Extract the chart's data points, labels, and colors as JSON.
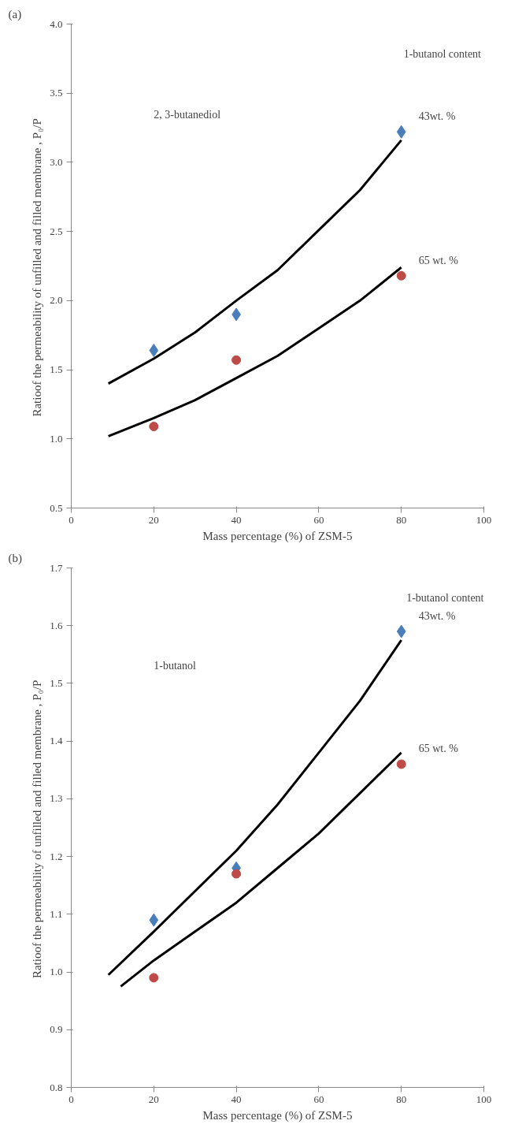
{
  "chart_data": [
    {
      "type": "scatter",
      "title": "(a)",
      "xlabel": "Mass percentage (%) of ZSM-5",
      "ylabel": "Ratioof the permeability of  unfilled and filled membrane , P₀/P",
      "legend_title": "1-butanol  content",
      "annotations": [
        "2, 3-butanediol"
      ],
      "xlim": [
        0,
        100
      ],
      "xticks": [
        0,
        20,
        40,
        60,
        80,
        100
      ],
      "ylim": [
        0.5,
        4.0
      ],
      "yticks": [
        {
          "value": 0.5,
          "label": "0.5"
        },
        {
          "value": 1.0,
          "label": "1.0"
        },
        {
          "value": 1.5,
          "label": "1.5"
        },
        {
          "value": 2.0,
          "label": "2.0"
        },
        {
          "value": 2.5,
          "label": "2.5"
        },
        {
          "value": 3.0,
          "label": "3.0"
        },
        {
          "value": 3.5,
          "label": "3.5"
        },
        {
          "value": 4.0,
          "label": "4.0"
        }
      ],
      "grid": false,
      "x": [
        20,
        40,
        80
      ],
      "series": [
        {
          "name": "43wt. %",
          "marker": "diamond",
          "color": "#4a7ebb",
          "values": [
            1.64,
            1.9,
            3.22
          ]
        },
        {
          "name": "65 wt. %",
          "marker": "circle",
          "color": "#be4b48",
          "values": [
            1.09,
            1.57,
            2.18
          ]
        },
        {
          "type": "line",
          "color": "#000000",
          "x": [
            9,
            20,
            30,
            40,
            50,
            60,
            70,
            80
          ],
          "values": [
            1.4,
            1.58,
            1.77,
            2.0,
            2.22,
            2.51,
            2.8,
            3.16
          ]
        },
        {
          "type": "line",
          "color": "#000000",
          "x": [
            9,
            20,
            30,
            40,
            50,
            60,
            70,
            80
          ],
          "values": [
            1.02,
            1.15,
            1.28,
            1.44,
            1.6,
            1.8,
            2.0,
            2.24
          ]
        }
      ]
    },
    {
      "type": "scatter",
      "title": "(b)",
      "xlabel": "Mass percentage (%) of ZSM-5",
      "ylabel": "Ratioof the permeability of  unfilled and filled membrane , P₀/P",
      "legend_title": "1-butanol content",
      "annotations": [
        "1-butanol"
      ],
      "xlim": [
        0,
        100
      ],
      "xticks": [
        0,
        20,
        40,
        60,
        80,
        100
      ],
      "ylim": [
        0.8,
        1.7
      ],
      "yticks": [
        {
          "value": 0.8,
          "label": "0.8"
        },
        {
          "value": 0.9,
          "label": "0.9"
        },
        {
          "value": 1.0,
          "label": "1.0"
        },
        {
          "value": 1.1,
          "label": "1.1"
        },
        {
          "value": 1.2,
          "label": "1.2"
        },
        {
          "value": 1.3,
          "label": "1.3"
        },
        {
          "value": 1.4,
          "label": "1.4"
        },
        {
          "value": 1.5,
          "label": "1.5"
        },
        {
          "value": 1.6,
          "label": "1.6"
        },
        {
          "value": 1.7,
          "label": "1.7"
        }
      ],
      "grid": false,
      "x": [
        20,
        40,
        80
      ],
      "series": [
        {
          "name": "43wt. %",
          "marker": "diamond",
          "color": "#4a7ebb",
          "values": [
            1.09,
            1.18,
            1.59
          ]
        },
        {
          "name": "65 wt. %",
          "marker": "circle",
          "color": "#be4b48",
          "values": [
            0.99,
            1.17,
            1.36
          ]
        },
        {
          "type": "line",
          "color": "#000000",
          "x": [
            9,
            20,
            30,
            40,
            50,
            60,
            70,
            80
          ],
          "values": [
            0.995,
            1.07,
            1.14,
            1.21,
            1.29,
            1.38,
            1.47,
            1.575
          ]
        },
        {
          "type": "line",
          "color": "#000000",
          "x": [
            12,
            20,
            30,
            40,
            50,
            60,
            70,
            80
          ],
          "values": [
            0.975,
            1.02,
            1.07,
            1.12,
            1.18,
            1.24,
            1.31,
            1.38
          ]
        }
      ]
    }
  ]
}
